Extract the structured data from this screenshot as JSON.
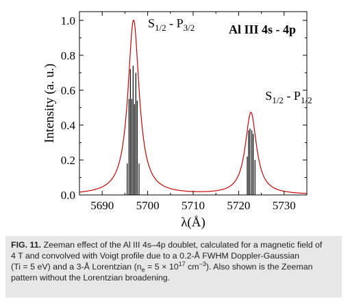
{
  "chart_data": {
    "type": "line",
    "xlabel": "λ(Å)",
    "ylabel": "Intensity (a. u.)",
    "xlim": [
      5685,
      5735
    ],
    "ylim": [
      0.0,
      1.05
    ],
    "x_ticks": [
      5690,
      5700,
      5710,
      5720,
      5730
    ],
    "y_ticks": [
      0.0,
      0.2,
      0.4,
      0.6,
      0.8,
      1.0
    ],
    "panel_label": "Al III 4s - 4p",
    "line_color": "#cc0000",
    "stick_color": "#000000",
    "series": [
      {
        "type": "lorentzian-voigt",
        "peaks": [
          {
            "center": 5696.9,
            "amplitude": 1.0,
            "fwhm": 3.0
          },
          {
            "center": 5722.7,
            "amplitude": 0.47,
            "fwhm": 3.0
          }
        ]
      },
      {
        "type": "zeeman-sticks",
        "sticks": [
          [
            5695.5,
            0.18
          ],
          [
            5695.9,
            0.55
          ],
          [
            5696.2,
            0.72
          ],
          [
            5696.5,
            0.55
          ],
          [
            5696.8,
            0.74
          ],
          [
            5697.1,
            0.52
          ],
          [
            5697.4,
            0.7
          ],
          [
            5697.7,
            0.54
          ],
          [
            5698.1,
            0.18
          ],
          [
            5721.9,
            0.22
          ],
          [
            5722.2,
            0.37
          ],
          [
            5722.5,
            0.38
          ],
          [
            5722.9,
            0.37
          ],
          [
            5723.2,
            0.35
          ],
          [
            5723.6,
            0.2
          ]
        ]
      }
    ],
    "annotations": [
      {
        "main": "S",
        "sub1": "1/2",
        "mid": " - P",
        "sub2": "3/2",
        "x": 5705.2,
        "y": 0.96
      },
      {
        "main": "S",
        "sub1": "1/2",
        "mid": " - P",
        "sub2": "1/2",
        "x": 5731.0,
        "y": 0.545
      }
    ]
  },
  "caption": {
    "label": "FIG. 11.",
    "line1_pre": "Zeeman effect of the Al III 4s–4p doublet, calculated for a magnetic field of",
    "line2": "4 T and convolved with Voigt profile due to a 0.2-Å FWHM Doppler-Gaussian",
    "line3_a": "(Ti = 5 eV) and a 3-Å Lorentzian (n",
    "line3_sub": "e",
    "line3_b": " = 5 × 10",
    "line3_sup": "17",
    "line3_c": " cm",
    "line3_sup2": "−3",
    "line3_d": "). Also shown is the Zeeman",
    "line4": "pattern without the Lorentzian broadening."
  }
}
